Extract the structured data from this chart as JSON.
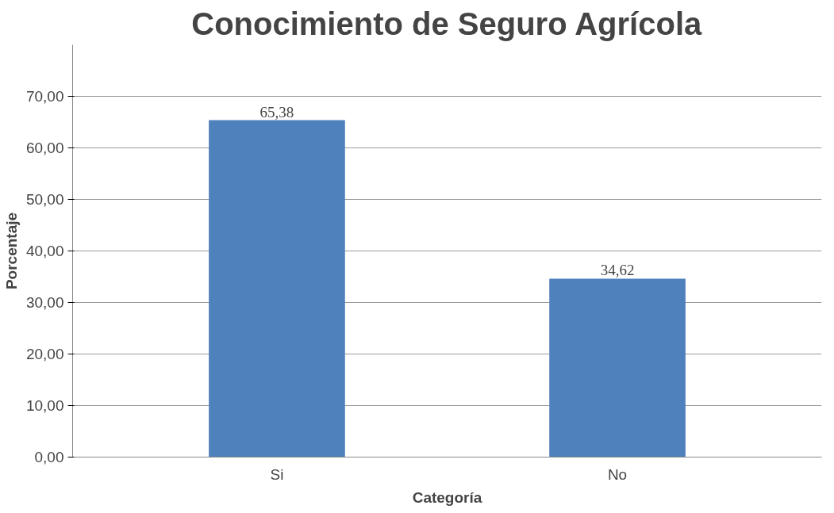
{
  "chart_data": {
    "type": "bar",
    "title": "Conocimiento de Seguro Agrícola",
    "xlabel": "Categoría",
    "ylabel": "Porcentaje",
    "categories": [
      "Si",
      "No"
    ],
    "values": [
      65.38,
      34.62
    ],
    "value_labels": [
      "65,38",
      "34,62"
    ],
    "color": "#4f81bd",
    "ylim": [
      0,
      80
    ],
    "yticks": [
      {
        "value": 0,
        "label": "0,00"
      },
      {
        "value": 10,
        "label": "10,00"
      },
      {
        "value": 20,
        "label": "20,00"
      },
      {
        "value": 30,
        "label": "30,00"
      },
      {
        "value": 40,
        "label": "40,00"
      },
      {
        "value": 50,
        "label": "50,00"
      },
      {
        "value": 60,
        "label": "60,00"
      },
      {
        "value": 70,
        "label": "70,00"
      }
    ],
    "grid": "y"
  }
}
